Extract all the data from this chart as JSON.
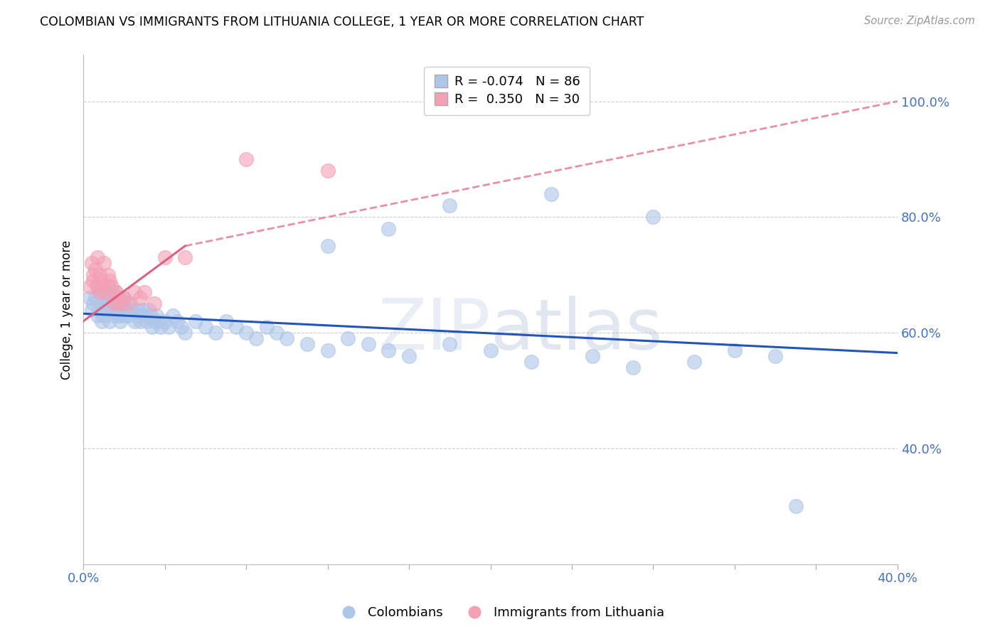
{
  "title": "COLOMBIAN VS IMMIGRANTS FROM LITHUANIA COLLEGE, 1 YEAR OR MORE CORRELATION CHART",
  "source": "Source: ZipAtlas.com",
  "ylabel": "College, 1 year or more",
  "right_yticks": [
    0.4,
    0.6,
    0.8,
    1.0
  ],
  "right_yticklabels": [
    "40.0%",
    "60.0%",
    "80.0%",
    "100.0%"
  ],
  "xmin": 0.0,
  "xmax": 0.4,
  "ymin": 0.2,
  "ymax": 1.08,
  "colombians_R": -0.074,
  "colombians_N": 86,
  "lithuania_R": 0.35,
  "lithuania_N": 30,
  "colombian_color": "#aec6e8",
  "lithuania_color": "#f4a0b5",
  "colombian_line_color": "#2255bb",
  "lithuania_line_color": "#e06080",
  "watermark_zip": "ZIP",
  "watermark_atlas": "atlas",
  "legend_labels": [
    "Colombians",
    "Immigrants from Lithuania"
  ],
  "colombians_x": [
    0.003,
    0.004,
    0.005,
    0.006,
    0.007,
    0.007,
    0.008,
    0.008,
    0.009,
    0.009,
    0.01,
    0.01,
    0.011,
    0.011,
    0.012,
    0.012,
    0.013,
    0.013,
    0.014,
    0.014,
    0.015,
    0.015,
    0.016,
    0.016,
    0.017,
    0.017,
    0.018,
    0.018,
    0.019,
    0.019,
    0.02,
    0.02,
    0.021,
    0.022,
    0.023,
    0.024,
    0.025,
    0.026,
    0.027,
    0.028,
    0.029,
    0.03,
    0.031,
    0.032,
    0.033,
    0.034,
    0.035,
    0.036,
    0.037,
    0.038,
    0.04,
    0.042,
    0.044,
    0.046,
    0.048,
    0.05,
    0.055,
    0.06,
    0.065,
    0.07,
    0.075,
    0.08,
    0.085,
    0.09,
    0.095,
    0.1,
    0.11,
    0.12,
    0.13,
    0.14,
    0.15,
    0.16,
    0.18,
    0.2,
    0.22,
    0.25,
    0.27,
    0.3,
    0.32,
    0.34,
    0.12,
    0.15,
    0.18,
    0.23,
    0.28,
    0.35
  ],
  "colombians_y": [
    0.66,
    0.64,
    0.65,
    0.66,
    0.63,
    0.68,
    0.64,
    0.67,
    0.65,
    0.62,
    0.63,
    0.67,
    0.65,
    0.66,
    0.64,
    0.68,
    0.65,
    0.62,
    0.64,
    0.66,
    0.63,
    0.65,
    0.64,
    0.67,
    0.65,
    0.63,
    0.66,
    0.62,
    0.65,
    0.64,
    0.63,
    0.66,
    0.64,
    0.63,
    0.65,
    0.64,
    0.62,
    0.64,
    0.63,
    0.62,
    0.64,
    0.63,
    0.62,
    0.64,
    0.63,
    0.61,
    0.62,
    0.63,
    0.62,
    0.61,
    0.62,
    0.61,
    0.63,
    0.62,
    0.61,
    0.6,
    0.62,
    0.61,
    0.6,
    0.62,
    0.61,
    0.6,
    0.59,
    0.61,
    0.6,
    0.59,
    0.58,
    0.57,
    0.59,
    0.58,
    0.57,
    0.56,
    0.58,
    0.57,
    0.55,
    0.56,
    0.54,
    0.55,
    0.57,
    0.56,
    0.75,
    0.78,
    0.82,
    0.84,
    0.8,
    0.3
  ],
  "lithuania_x": [
    0.003,
    0.004,
    0.005,
    0.005,
    0.006,
    0.007,
    0.007,
    0.008,
    0.008,
    0.009,
    0.01,
    0.01,
    0.011,
    0.012,
    0.013,
    0.014,
    0.015,
    0.016,
    0.017,
    0.018,
    0.02,
    0.022,
    0.025,
    0.028,
    0.03,
    0.035,
    0.04,
    0.05,
    0.08,
    0.12
  ],
  "lithuania_y": [
    0.68,
    0.72,
    0.7,
    0.69,
    0.71,
    0.68,
    0.73,
    0.67,
    0.7,
    0.69,
    0.68,
    0.72,
    0.67,
    0.7,
    0.69,
    0.68,
    0.65,
    0.67,
    0.66,
    0.65,
    0.66,
    0.65,
    0.67,
    0.66,
    0.67,
    0.65,
    0.73,
    0.73,
    0.9,
    0.88
  ]
}
